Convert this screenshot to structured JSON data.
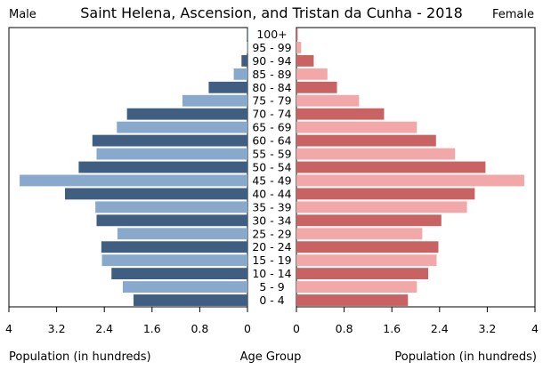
{
  "chart_data": {
    "type": "bar",
    "title": "Saint Helena, Ascension, and Tristan da Cunha - 2018",
    "left_label": "Male",
    "right_label": "Female",
    "xlabel_left": "Population (in hundreds)",
    "xlabel_center": "Age Group",
    "xlabel_right": "Population (in hundreds)",
    "xlim": [
      0,
      4
    ],
    "x_ticks": [
      0,
      0.8,
      1.6,
      2.4,
      3.2,
      4
    ],
    "x_tick_labels_left": [
      "0",
      "0.8",
      "1.6",
      "2.4",
      "3.2",
      "4"
    ],
    "x_tick_labels_right": [
      "0",
      "0.8",
      "1.6",
      "2.4",
      "3.2",
      "4"
    ],
    "categories": [
      "100+",
      "95 - 99",
      "90 - 94",
      "85 - 89",
      "80 - 84",
      "75 - 79",
      "70 - 74",
      "65 - 69",
      "60 - 64",
      "55 - 59",
      "50 - 54",
      "45 - 49",
      "40 - 44",
      "35 - 39",
      "30 - 34",
      "25 - 29",
      "20 - 24",
      "15 - 19",
      "10 - 14",
      "5 - 9",
      "0 - 4"
    ],
    "series": [
      {
        "name": "Male",
        "values": [
          0.01,
          0.01,
          0.1,
          0.23,
          0.65,
          1.09,
          2.02,
          2.19,
          2.6,
          2.53,
          2.83,
          3.82,
          3.06,
          2.55,
          2.53,
          2.18,
          2.45,
          2.44,
          2.28,
          2.09,
          1.91
        ]
      },
      {
        "name": "Female",
        "values": [
          0.02,
          0.08,
          0.29,
          0.52,
          0.68,
          1.05,
          1.47,
          2.02,
          2.34,
          2.66,
          3.17,
          3.82,
          2.99,
          2.86,
          2.43,
          2.11,
          2.38,
          2.35,
          2.21,
          2.02,
          1.87
        ]
      }
    ],
    "colors": {
      "male_dark": "#405e82",
      "male_light": "#89a9cc",
      "female_dark": "#c96363",
      "female_light": "#f2a8a8",
      "axis": "#000000"
    },
    "grid": false
  }
}
